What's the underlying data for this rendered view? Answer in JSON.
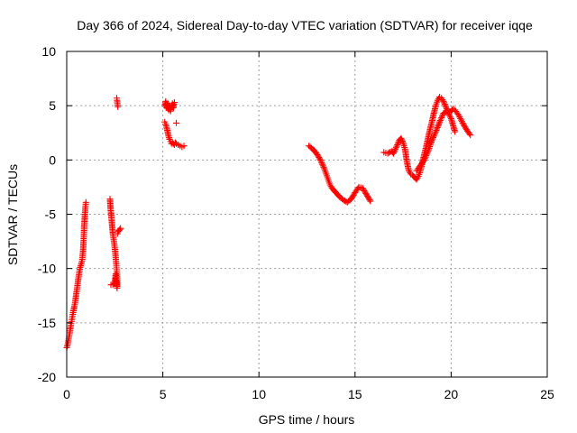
{
  "chart_data": {
    "type": "scatter",
    "title": "Day 366 of 2024, Sidereal Day-to-day VTEC variation (SDTVAR) for receiver iqqe",
    "xlabel": "GPS time / hours",
    "ylabel": "SDTVAR / TECUs",
    "xlim": [
      0,
      25
    ],
    "ylim": [
      -20,
      10
    ],
    "xticks": [
      0,
      5,
      10,
      15,
      20,
      25
    ],
    "yticks": [
      -20,
      -15,
      -10,
      -5,
      0,
      5,
      10
    ],
    "grid": true,
    "marker": "plus",
    "color": "#ff0000",
    "series": [
      {
        "name": "arc-1",
        "x": [
          0.0,
          0.05,
          0.1,
          0.15,
          0.2,
          0.25,
          0.3,
          0.35,
          0.4,
          0.45,
          0.5,
          0.55,
          0.6,
          0.65,
          0.7,
          0.75,
          0.8,
          0.85,
          0.88,
          0.9,
          0.92,
          0.95,
          0.97,
          1.0
        ],
        "y": [
          -17.3,
          -17.0,
          -16.5,
          -16.0,
          -15.4,
          -14.9,
          -14.4,
          -13.9,
          -13.5,
          -13.0,
          -12.3,
          -11.7,
          -11.0,
          -10.4,
          -9.9,
          -9.6,
          -9.3,
          -8.4,
          -7.4,
          -6.5,
          -5.8,
          -5.0,
          -4.4,
          -3.9
        ]
      },
      {
        "name": "arc-2",
        "x": [
          2.25,
          2.28,
          2.32,
          2.36,
          2.4,
          2.44,
          2.48,
          2.52,
          2.55,
          2.58,
          2.6,
          2.62,
          2.63,
          2.63,
          2.62,
          2.6,
          2.58,
          2.56,
          2.55,
          2.5,
          2.4,
          2.3
        ],
        "y": [
          -3.6,
          -4.4,
          -5.2,
          -6.0,
          -6.8,
          -7.3,
          -7.8,
          -8.4,
          -9.0,
          -9.6,
          -10.1,
          -10.6,
          -11.1,
          -11.6,
          -11.8,
          -11.5,
          -11.2,
          -10.8,
          -10.5,
          -11.3,
          -11.5,
          -11.5
        ]
      },
      {
        "name": "arc-3",
        "x": [
          2.6,
          2.62,
          2.64,
          2.66
        ],
        "y": [
          5.7,
          5.5,
          5.2,
          4.9
        ]
      },
      {
        "name": "arc-4",
        "x": [
          2.64,
          2.68,
          2.72,
          2.76,
          2.8
        ],
        "y": [
          -6.8,
          -6.6,
          -6.5,
          -6.4,
          -6.3
        ]
      },
      {
        "name": "arc-5",
        "x": [
          5.1,
          5.15,
          5.2,
          5.25,
          5.3,
          5.35,
          5.4,
          5.45,
          5.5,
          5.55,
          5.6,
          5.65,
          5.7,
          5.8,
          5.9,
          6.0,
          6.1
        ],
        "y": [
          3.5,
          3.3,
          3.0,
          2.6,
          2.2,
          1.9,
          1.7,
          1.5,
          1.6,
          1.5,
          1.4,
          1.6,
          1.5,
          1.4,
          1.3,
          1.2,
          1.3
        ]
      },
      {
        "name": "arc-6",
        "x": [
          5.1,
          5.15,
          5.2,
          5.25,
          5.3,
          5.35,
          5.4,
          5.45,
          5.5,
          5.55,
          5.6
        ],
        "y": [
          5.0,
          5.4,
          4.8,
          5.2,
          4.6,
          5.0,
          4.5,
          4.9,
          5.2,
          4.8,
          5.3
        ]
      },
      {
        "name": "arc-7",
        "x": [
          5.7
        ],
        "y": [
          3.4
        ]
      },
      {
        "name": "arc-8",
        "x": [
          12.6,
          12.8,
          13.0,
          13.2,
          13.4,
          13.5,
          13.6,
          13.7,
          13.8,
          14.0,
          14.2,
          14.4,
          14.6,
          14.8,
          15.0,
          15.2,
          15.4,
          15.6,
          15.8
        ],
        "y": [
          1.3,
          1.0,
          0.6,
          0.0,
          -0.8,
          -1.3,
          -1.8,
          -2.3,
          -2.6,
          -3.0,
          -3.4,
          -3.7,
          -3.9,
          -3.6,
          -3.0,
          -2.5,
          -2.6,
          -3.2,
          -3.8
        ]
      },
      {
        "name": "arc-9",
        "x": [
          16.5,
          16.7,
          16.9,
          17.0,
          17.1,
          17.2,
          17.3,
          17.4,
          17.5,
          17.6,
          17.7,
          17.8,
          17.9,
          18.0,
          18.1,
          18.2,
          18.3,
          18.4,
          18.5,
          18.6,
          18.7,
          18.8,
          18.9,
          19.0,
          19.1,
          19.2,
          19.3,
          19.4,
          19.5,
          19.6,
          19.7,
          19.8,
          19.9,
          20.0,
          20.1,
          20.2,
          20.4,
          20.6,
          20.8,
          21.0
        ],
        "y": [
          0.7,
          0.6,
          0.8,
          0.6,
          1.0,
          1.4,
          1.8,
          2.0,
          1.6,
          1.0,
          -0.2,
          -1.0,
          -1.3,
          -1.4,
          -1.6,
          -1.8,
          -1.5,
          -1.0,
          -0.3,
          0.5,
          1.2,
          2.0,
          2.8,
          3.5,
          4.3,
          5.0,
          5.5,
          5.8,
          5.7,
          5.4,
          5.0,
          4.6,
          4.4,
          4.5,
          4.7,
          4.6,
          4.1,
          3.4,
          2.8,
          2.3
        ]
      },
      {
        "name": "arc-10",
        "x": [
          18.2,
          18.4,
          18.6,
          18.8,
          19.0,
          19.2,
          19.4,
          19.6,
          19.8,
          20.0,
          20.2
        ],
        "y": [
          -1.0,
          -0.5,
          0.0,
          0.8,
          1.8,
          2.6,
          3.5,
          4.3,
          4.5,
          3.8,
          2.6
        ]
      }
    ]
  }
}
